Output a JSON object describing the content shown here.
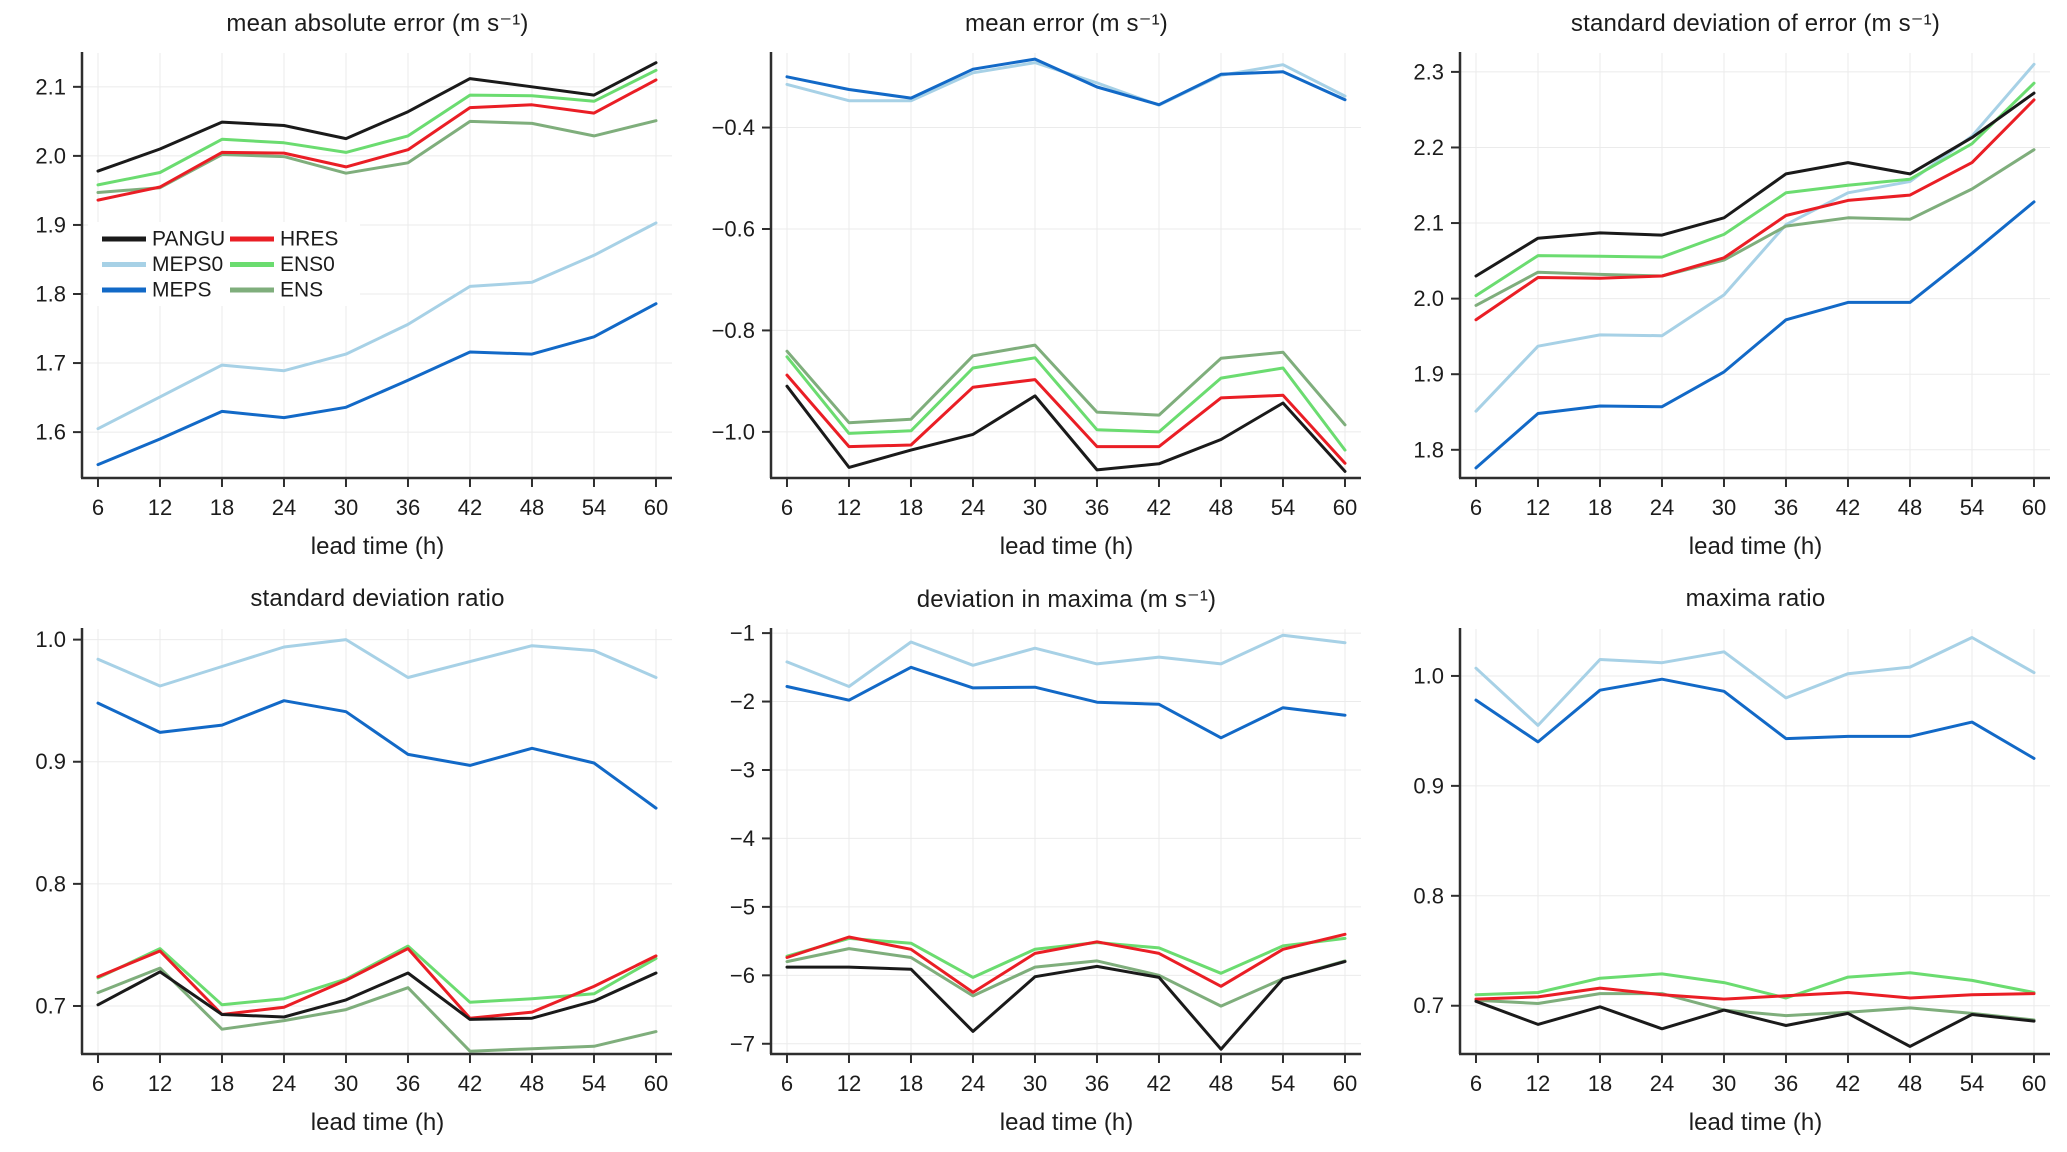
{
  "figure": {
    "background_color": "#ffffff",
    "axis_color": "#2e2e2e",
    "grid_color": "#ebebeb",
    "text_color": "#1c1c1c",
    "models": [
      "PANGU",
      "MEPS0",
      "MEPS",
      "HRES",
      "ENS0",
      "ENS"
    ],
    "model_colors": {
      "PANGU": "#1a1a1a",
      "MEPS0": "#a7d1e6",
      "MEPS": "#1269c7",
      "HRES": "#ea1e25",
      "ENS0": "#6bdc70",
      "ENS": "#7fae7c"
    }
  },
  "chart_data": [
    {
      "type": "line",
      "title": "mean absolute error (m s⁻¹)",
      "xlabel": "lead time (h)",
      "x": [
        6,
        12,
        18,
        24,
        30,
        36,
        42,
        48,
        54,
        60
      ],
      "xticks": [
        6,
        12,
        18,
        24,
        30,
        36,
        42,
        48,
        54,
        60
      ],
      "yticks": [
        1.6,
        1.7,
        1.8,
        1.9,
        2.0,
        2.1
      ],
      "ytick_decimals": 1,
      "xlim": [
        4.55,
        61.55
      ],
      "ylim": [
        1.535,
        2.149
      ],
      "grid": true,
      "legend": {
        "show": true,
        "position": "inside-left-middle",
        "columns": [
          [
            "PANGU",
            "MEPS0",
            "MEPS"
          ],
          [
            "HRES",
            "ENS0",
            "ENS"
          ]
        ]
      },
      "series": [
        {
          "name": "MEPS0",
          "color": "#a7d1e6",
          "values": [
            1.605,
            1.651,
            1.697,
            1.689,
            1.713,
            1.756,
            1.811,
            1.817,
            1.856,
            1.903
          ]
        },
        {
          "name": "MEPS",
          "color": "#1269c7",
          "values": [
            1.553,
            1.59,
            1.63,
            1.621,
            1.636,
            1.675,
            1.716,
            1.713,
            1.738,
            1.786
          ]
        },
        {
          "name": "ENS",
          "color": "#7fae7c",
          "values": [
            1.947,
            1.954,
            2.002,
            1.999,
            1.975,
            1.99,
            2.05,
            2.047,
            2.029,
            2.051
          ]
        },
        {
          "name": "ENS0",
          "color": "#6bdc70",
          "values": [
            1.958,
            1.976,
            2.024,
            2.019,
            2.005,
            2.029,
            2.088,
            2.087,
            2.079,
            2.124
          ]
        },
        {
          "name": "HRES",
          "color": "#ea1e25",
          "values": [
            1.936,
            1.955,
            2.005,
            2.004,
            1.984,
            2.009,
            2.07,
            2.074,
            2.062,
            2.11
          ]
        },
        {
          "name": "PANGU",
          "color": "#1a1a1a",
          "values": [
            1.978,
            2.01,
            2.049,
            2.044,
            2.025,
            2.064,
            2.112,
            2.1,
            2.088,
            2.135
          ]
        }
      ]
    },
    {
      "type": "line",
      "title": "mean error (m s⁻¹)",
      "xlabel": "lead time (h)",
      "x": [
        6,
        12,
        18,
        24,
        30,
        36,
        42,
        48,
        54,
        60
      ],
      "xticks": [
        6,
        12,
        18,
        24,
        30,
        36,
        42,
        48,
        54,
        60
      ],
      "yticks": [
        -0.4,
        -0.6,
        -0.8,
        -1.0
      ],
      "ytick_decimals": 1,
      "xlim": [
        4.55,
        61.55
      ],
      "ylim": [
        -1.089,
        -0.253
      ],
      "grid": true,
      "legend": {
        "show": false
      },
      "series": [
        {
          "name": "MEPS0",
          "color": "#a7d1e6",
          "values": [
            -0.315,
            -0.347,
            -0.347,
            -0.292,
            -0.272,
            -0.312,
            -0.356,
            -0.297,
            -0.276,
            -0.338
          ]
        },
        {
          "name": "MEPS",
          "color": "#1269c7",
          "values": [
            -0.3,
            -0.325,
            -0.342,
            -0.285,
            -0.265,
            -0.32,
            -0.355,
            -0.295,
            -0.29,
            -0.345
          ]
        },
        {
          "name": "ENS",
          "color": "#7fae7c",
          "values": [
            -0.841,
            -0.982,
            -0.975,
            -0.85,
            -0.829,
            -0.961,
            -0.967,
            -0.855,
            -0.843,
            -0.986
          ]
        },
        {
          "name": "ENS0",
          "color": "#6bdc70",
          "values": [
            -0.852,
            -1.003,
            -0.998,
            -0.874,
            -0.854,
            -0.996,
            -1.0,
            -0.894,
            -0.874,
            -1.036
          ]
        },
        {
          "name": "HRES",
          "color": "#ea1e25",
          "values": [
            -0.888,
            -1.029,
            -1.026,
            -0.912,
            -0.897,
            -1.029,
            -1.029,
            -0.933,
            -0.928,
            -1.062
          ]
        },
        {
          "name": "PANGU",
          "color": "#1a1a1a",
          "values": [
            -0.91,
            -1.07,
            -1.036,
            -1.005,
            -0.929,
            -1.075,
            -1.063,
            -1.015,
            -0.943,
            -1.078
          ]
        }
      ]
    },
    {
      "type": "line",
      "title": "standard deviation of error (m s⁻¹)",
      "xlabel": "lead time (h)",
      "x": [
        6,
        12,
        18,
        24,
        30,
        36,
        42,
        48,
        54,
        60
      ],
      "xticks": [
        6,
        12,
        18,
        24,
        30,
        36,
        42,
        48,
        54,
        60
      ],
      "yticks": [
        1.8,
        1.9,
        2.0,
        2.1,
        2.2,
        2.3
      ],
      "ytick_decimals": 1,
      "xlim": [
        4.55,
        61.55
      ],
      "ylim": [
        1.764,
        2.325
      ],
      "grid": true,
      "legend": {
        "show": false
      },
      "series": [
        {
          "name": "MEPS0",
          "color": "#a7d1e6",
          "values": [
            1.851,
            1.937,
            1.952,
            1.951,
            2.005,
            2.098,
            2.14,
            2.155,
            2.215,
            2.31
          ]
        },
        {
          "name": "MEPS",
          "color": "#1269c7",
          "values": [
            1.776,
            1.848,
            1.858,
            1.857,
            1.903,
            1.972,
            1.995,
            1.995,
            2.06,
            2.128
          ]
        },
        {
          "name": "ENS",
          "color": "#7fae7c",
          "values": [
            1.991,
            2.035,
            2.032,
            2.03,
            2.051,
            2.096,
            2.107,
            2.105,
            2.145,
            2.197
          ]
        },
        {
          "name": "ENS0",
          "color": "#6bdc70",
          "values": [
            2.004,
            2.057,
            2.056,
            2.055,
            2.085,
            2.14,
            2.15,
            2.158,
            2.205,
            2.285
          ]
        },
        {
          "name": "HRES",
          "color": "#ea1e25",
          "values": [
            1.972,
            2.028,
            2.027,
            2.03,
            2.054,
            2.11,
            2.13,
            2.137,
            2.18,
            2.263
          ]
        },
        {
          "name": "PANGU",
          "color": "#1a1a1a",
          "values": [
            2.03,
            2.08,
            2.087,
            2.084,
            2.107,
            2.165,
            2.18,
            2.165,
            2.213,
            2.272
          ]
        }
      ]
    },
    {
      "type": "line",
      "title": "standard deviation ratio",
      "xlabel": "lead time (h)",
      "x": [
        6,
        12,
        18,
        24,
        30,
        36,
        42,
        48,
        54,
        60
      ],
      "xticks": [
        6,
        12,
        18,
        24,
        30,
        36,
        42,
        48,
        54,
        60
      ],
      "yticks": [
        0.7,
        0.8,
        0.9,
        1.0
      ],
      "ytick_decimals": 1,
      "xlim": [
        4.55,
        61.55
      ],
      "ylim": [
        0.6615,
        1.0087
      ],
      "grid": true,
      "legend": {
        "show": false
      },
      "series": [
        {
          "name": "MEPS0",
          "color": "#a7d1e6",
          "values": [
            0.984,
            0.962,
            0.978,
            0.994,
            1.0,
            0.969,
            0.982,
            0.995,
            0.991,
            0.969
          ]
        },
        {
          "name": "MEPS",
          "color": "#1269c7",
          "values": [
            0.948,
            0.924,
            0.93,
            0.95,
            0.941,
            0.906,
            0.897,
            0.911,
            0.899,
            0.862
          ]
        },
        {
          "name": "ENS",
          "color": "#7fae7c",
          "values": [
            0.711,
            0.731,
            0.681,
            0.688,
            0.697,
            0.715,
            0.663,
            0.665,
            0.667,
            0.679
          ]
        },
        {
          "name": "ENS0",
          "color": "#6bdc70",
          "values": [
            0.723,
            0.747,
            0.701,
            0.706,
            0.722,
            0.749,
            0.703,
            0.706,
            0.71,
            0.739
          ]
        },
        {
          "name": "HRES",
          "color": "#ea1e25",
          "values": [
            0.724,
            0.745,
            0.693,
            0.699,
            0.721,
            0.747,
            0.69,
            0.695,
            0.716,
            0.741
          ]
        },
        {
          "name": "PANGU",
          "color": "#1a1a1a",
          "values": [
            0.701,
            0.728,
            0.693,
            0.691,
            0.705,
            0.727,
            0.689,
            0.69,
            0.704,
            0.727
          ]
        }
      ]
    },
    {
      "type": "line",
      "title": "deviation in maxima (m s⁻¹)",
      "xlabel": "lead time (h)",
      "x": [
        6,
        12,
        18,
        24,
        30,
        36,
        42,
        48,
        54,
        60
      ],
      "xticks": [
        6,
        12,
        18,
        24,
        30,
        36,
        42,
        48,
        54,
        60
      ],
      "yticks": [
        -1,
        -2,
        -3,
        -4,
        -5,
        -6,
        -7
      ],
      "ytick_decimals": 0,
      "xlim": [
        4.55,
        61.55
      ],
      "ylim": [
        -7.135,
        -0.94
      ],
      "grid": true,
      "legend": {
        "show": false
      },
      "series": [
        {
          "name": "MEPS0",
          "color": "#a7d1e6",
          "values": [
            -1.42,
            -1.78,
            -1.13,
            -1.47,
            -1.22,
            -1.45,
            -1.35,
            -1.45,
            -1.03,
            -1.14
          ]
        },
        {
          "name": "MEPS",
          "color": "#1269c7",
          "values": [
            -1.78,
            -1.98,
            -1.5,
            -1.8,
            -1.79,
            -2.01,
            -2.04,
            -2.53,
            -2.09,
            -2.2
          ]
        },
        {
          "name": "ENS",
          "color": "#7fae7c",
          "values": [
            -5.8,
            -5.61,
            -5.74,
            -6.3,
            -5.88,
            -5.79,
            -6.0,
            -6.45,
            -6.05,
            -5.79
          ]
        },
        {
          "name": "ENS0",
          "color": "#6bdc70",
          "values": [
            -5.72,
            -5.46,
            -5.53,
            -6.03,
            -5.62,
            -5.52,
            -5.6,
            -5.97,
            -5.57,
            -5.46
          ]
        },
        {
          "name": "HRES",
          "color": "#ea1e25",
          "values": [
            -5.74,
            -5.44,
            -5.62,
            -6.25,
            -5.68,
            -5.51,
            -5.68,
            -6.16,
            -5.62,
            -5.4
          ]
        },
        {
          "name": "PANGU",
          "color": "#1a1a1a",
          "values": [
            -5.88,
            -5.88,
            -5.91,
            -6.82,
            -6.02,
            -5.87,
            -6.03,
            -7.08,
            -6.05,
            -5.8
          ]
        }
      ]
    },
    {
      "type": "line",
      "title": "maxima ratio",
      "xlabel": "lead time (h)",
      "x": [
        6,
        12,
        18,
        24,
        30,
        36,
        42,
        48,
        54,
        60
      ],
      "xticks": [
        6,
        12,
        18,
        24,
        30,
        36,
        42,
        48,
        54,
        60
      ],
      "yticks": [
        0.7,
        0.8,
        0.9,
        1.0
      ],
      "ytick_decimals": 1,
      "xlim": [
        4.55,
        61.55
      ],
      "ylim": [
        0.657,
        1.0427
      ],
      "grid": true,
      "legend": {
        "show": false
      },
      "series": [
        {
          "name": "MEPS0",
          "color": "#a7d1e6",
          "values": [
            1.007,
            0.955,
            1.015,
            1.012,
            1.022,
            0.98,
            1.002,
            1.008,
            1.035,
            1.003
          ]
        },
        {
          "name": "MEPS",
          "color": "#1269c7",
          "values": [
            0.978,
            0.94,
            0.987,
            0.997,
            0.986,
            0.943,
            0.945,
            0.945,
            0.958,
            0.925
          ]
        },
        {
          "name": "ENS",
          "color": "#7fae7c",
          "values": [
            0.705,
            0.702,
            0.711,
            0.711,
            0.696,
            0.691,
            0.694,
            0.698,
            0.693,
            0.687
          ]
        },
        {
          "name": "ENS0",
          "color": "#6bdc70",
          "values": [
            0.71,
            0.712,
            0.725,
            0.729,
            0.721,
            0.707,
            0.726,
            0.73,
            0.723,
            0.712
          ]
        },
        {
          "name": "HRES",
          "color": "#ea1e25",
          "values": [
            0.706,
            0.708,
            0.716,
            0.71,
            0.706,
            0.709,
            0.712,
            0.707,
            0.71,
            0.711
          ]
        },
        {
          "name": "PANGU",
          "color": "#1a1a1a",
          "values": [
            0.704,
            0.683,
            0.699,
            0.679,
            0.696,
            0.682,
            0.693,
            0.663,
            0.692,
            0.686
          ]
        }
      ]
    }
  ]
}
